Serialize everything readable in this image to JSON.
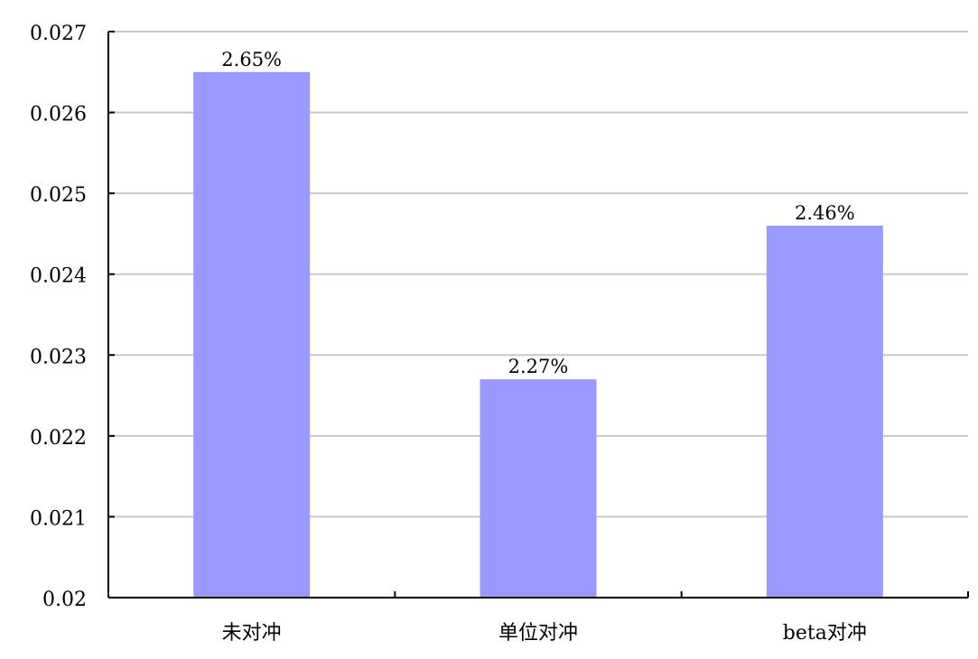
{
  "chart_data": {
    "type": "bar",
    "categories": [
      "未对冲",
      "单位对冲",
      "beta对冲"
    ],
    "values": [
      0.0265,
      0.0227,
      0.0246
    ],
    "data_labels": [
      "2.65%",
      "2.27%",
      "2.46%"
    ],
    "title": "",
    "xlabel": "",
    "ylabel": "",
    "ylim": [
      0.02,
      0.027
    ],
    "yticks": [
      0.02,
      0.021,
      0.022,
      0.023,
      0.024,
      0.025,
      0.026,
      0.027
    ],
    "ytick_labels": [
      "0.02",
      "0.021",
      "0.022",
      "0.023",
      "0.024",
      "0.025",
      "0.026",
      "0.027"
    ],
    "grid": true,
    "legend": "none",
    "colors": {
      "bar": "#9999FF",
      "grid": "#C8C8C8",
      "axis": "#000000"
    }
  }
}
